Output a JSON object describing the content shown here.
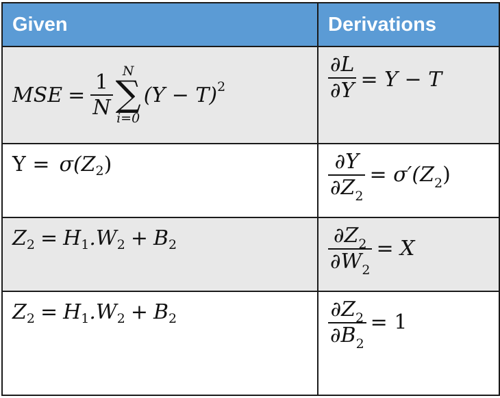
{
  "header": {
    "given": "Given",
    "derivations": "Derivations"
  },
  "rows": [
    {
      "given": {
        "lhs": "MSE",
        "eq": "=",
        "frac_num": "1",
        "frac_den": "N",
        "sum_upper": "N",
        "sum_symbol": "∑",
        "sum_lower": "i=0",
        "body": "(Y − T)",
        "power": "2"
      },
      "derivation": {
        "num": "∂L",
        "den": "∂Y",
        "rhs": "= Y  − T"
      }
    },
    {
      "given": {
        "lhs": "Y =",
        "func": "σ(Z",
        "func_sub": "2",
        "close": ")"
      },
      "derivation": {
        "num": "∂Y",
        "den": "∂Z",
        "den_sub": "2",
        "rhs": "= σ′(Z",
        "rhs_sub": "2",
        "rhs_close": ")"
      }
    },
    {
      "given": {
        "z": "Z",
        "z_sub": "2",
        "eq": "=",
        "h": "H",
        "h_sub": "1",
        "dot_w": ".W",
        "w_sub": "2",
        "plus": "+",
        "b": "B",
        "b_sub": "2"
      },
      "derivation": {
        "num": "∂Z",
        "num_sub": "2",
        "den": "∂W",
        "den_sub": "2",
        "rhs": "= X"
      }
    },
    {
      "given": {
        "z": "Z",
        "z_sub": "2",
        "eq": "=",
        "h": "H",
        "h_sub": "1",
        "dot_w": ".W",
        "w_sub": "2",
        "plus": "+",
        "b": "B",
        "b_sub": "2"
      },
      "derivation": {
        "num": "∂Z",
        "num_sub": "2",
        "den": "∂B",
        "den_sub": "2",
        "rhs": "= 1"
      }
    }
  ]
}
